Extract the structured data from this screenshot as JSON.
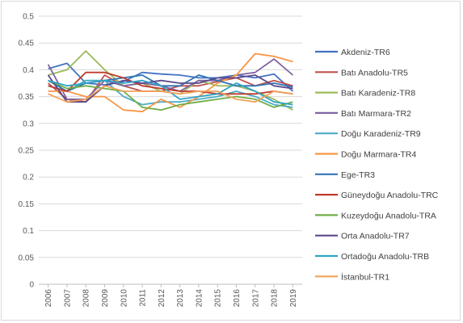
{
  "chart_data": {
    "type": "line",
    "title": "",
    "xlabel": "",
    "ylabel": "",
    "x": [
      "2006",
      "2007",
      "2008",
      "2009",
      "2010",
      "2011",
      "2012",
      "2013",
      "2014",
      "2015",
      "2016",
      "2017",
      "2018",
      "2019"
    ],
    "ylim": [
      0,
      0.5
    ],
    "yticks": [
      "0",
      "0.05",
      "0.1",
      "0.15",
      "0.2",
      "0.25",
      "0.3",
      "0.35",
      "0.4",
      "0.45",
      "0.5"
    ],
    "grid": "horizontal",
    "legend_position": "right",
    "series": [
      {
        "name": "Akdeniz-TR6",
        "color": "#4472c4",
        "values": [
          0.402,
          0.412,
          0.375,
          0.372,
          0.378,
          0.395,
          0.392,
          0.39,
          0.385,
          0.385,
          0.39,
          0.385,
          0.392,
          0.36
        ]
      },
      {
        "name": "Batı Anadolu-TR5",
        "color": "#c0504d",
        "values": [
          0.375,
          0.345,
          0.34,
          0.39,
          0.37,
          0.36,
          0.36,
          0.37,
          0.37,
          0.378,
          0.385,
          0.37,
          0.38,
          0.37
        ]
      },
      {
        "name": "Batı Karadeniz-TR8",
        "color": "#9bbb59",
        "values": [
          0.39,
          0.4,
          0.435,
          0.4,
          0.37,
          0.375,
          0.36,
          0.355,
          0.38,
          0.37,
          0.37,
          0.36,
          0.345,
          0.325
        ]
      },
      {
        "name": "Batı Marmara-TR2",
        "color": "#8064a2",
        "values": [
          0.41,
          0.345,
          0.345,
          0.38,
          0.37,
          0.375,
          0.37,
          0.36,
          0.38,
          0.38,
          0.39,
          0.395,
          0.42,
          0.39
        ]
      },
      {
        "name": "Doğu Karadeniz-TR9",
        "color": "#4bacc6",
        "values": [
          0.37,
          0.36,
          0.38,
          0.38,
          0.35,
          0.335,
          0.34,
          0.34,
          0.345,
          0.35,
          0.36,
          0.35,
          0.335,
          0.33
        ]
      },
      {
        "name": "Doğu Marmara-TR4",
        "color": "#f79646",
        "values": [
          0.36,
          0.36,
          0.35,
          0.35,
          0.325,
          0.322,
          0.345,
          0.33,
          0.35,
          0.375,
          0.39,
          0.43,
          0.425,
          0.415
        ]
      },
      {
        "name": "Ege-TR3",
        "color": "#2e75b6",
        "values": [
          0.38,
          0.36,
          0.375,
          0.38,
          0.385,
          0.39,
          0.37,
          0.37,
          0.39,
          0.38,
          0.37,
          0.37,
          0.375,
          0.368
        ]
      },
      {
        "name": "Güneydoğu Anadolu-TRC",
        "color": "#c0392b",
        "values": [
          0.37,
          0.36,
          0.395,
          0.395,
          0.385,
          0.37,
          0.365,
          0.36,
          0.36,
          0.355,
          0.355,
          0.355,
          0.36,
          0.355
        ]
      },
      {
        "name": "Kuzeydoğu Anadolu-TRA",
        "color": "#70ad47",
        "values": [
          0.38,
          0.365,
          0.37,
          0.365,
          0.36,
          0.33,
          0.325,
          0.335,
          0.34,
          0.345,
          0.35,
          0.345,
          0.33,
          0.34
        ]
      },
      {
        "name": "Orta Anadolu-TR7",
        "color": "#5b4a8b",
        "values": [
          0.39,
          0.34,
          0.34,
          0.37,
          0.38,
          0.375,
          0.38,
          0.375,
          0.375,
          0.385,
          0.385,
          0.39,
          0.37,
          0.365
        ]
      },
      {
        "name": "Ortadoğu Anadolu-TRB",
        "color": "#31a3c6",
        "values": [
          0.38,
          0.37,
          0.375,
          0.38,
          0.375,
          0.38,
          0.37,
          0.345,
          0.35,
          0.355,
          0.375,
          0.36,
          0.34,
          0.335
        ]
      },
      {
        "name": "İstanbul-TR1",
        "color": "#f0a35a",
        "values": [
          0.355,
          0.34,
          0.345,
          0.37,
          0.36,
          0.36,
          0.36,
          0.355,
          0.36,
          0.36,
          0.345,
          0.34,
          0.36,
          0.355
        ]
      }
    ]
  }
}
